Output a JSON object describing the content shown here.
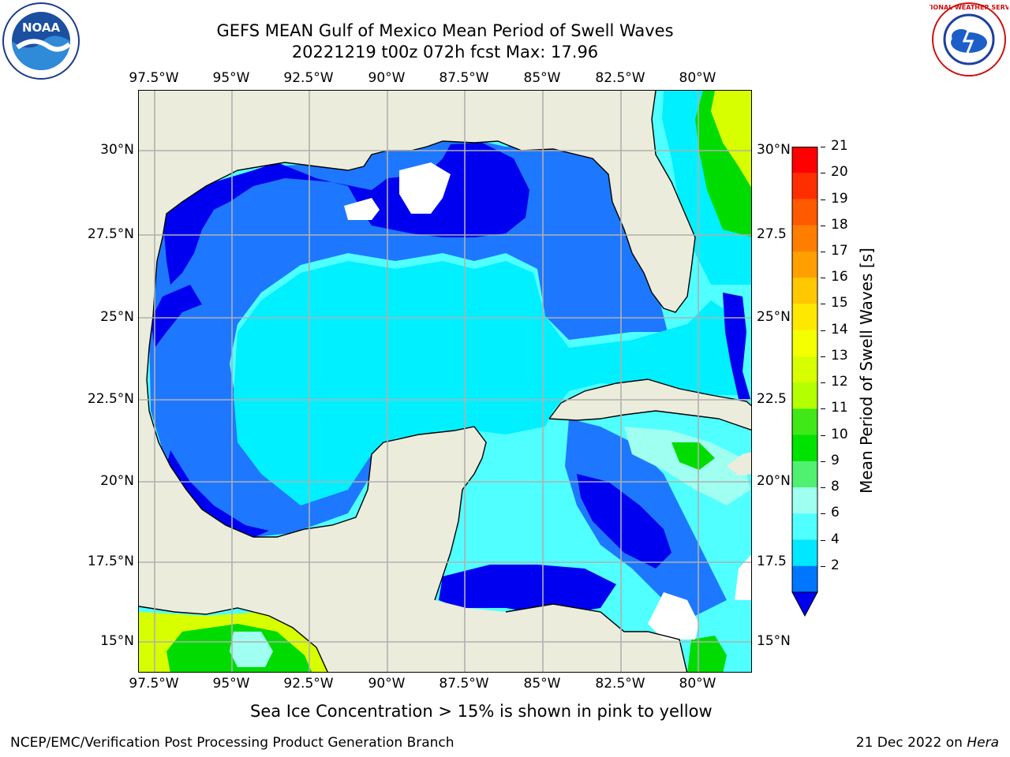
{
  "title": {
    "line1": "GEFS MEAN Gulf of Mexico Mean Period of Swell Waves",
    "line2": "20221219 t00z 072h fcst   Max: 17.96"
  },
  "logos": {
    "left": "NOAA",
    "right": "NATIONAL WEATHER SERVICE"
  },
  "axes": {
    "lon_ticks": [
      "97.5°W",
      "95°W",
      "92.5°W",
      "90°W",
      "87.5°W",
      "85°W",
      "82.5°W",
      "80°W"
    ],
    "lat_ticks_left": [
      "30°N",
      "27.5°N",
      "25°N",
      "22.5°N",
      "20°N",
      "17.5°N",
      "15°N"
    ],
    "lat_ticks_right": [
      "30°N",
      "27.5",
      "25°N",
      "22.5",
      "20°N",
      "17.5",
      "15°N"
    ]
  },
  "colorbar": {
    "label": "Mean Period of Swell Waves [s]",
    "ticks": [
      "21",
      "20",
      "19",
      "18",
      "17",
      "16",
      "15",
      "14",
      "13",
      "12",
      "11",
      "10",
      "9",
      "8",
      "6",
      "4",
      "2"
    ],
    "colors": [
      "#ff0000",
      "#ff2e00",
      "#ff5a00",
      "#ff7e00",
      "#ffa000",
      "#ffc800",
      "#ffe800",
      "#f5ff00",
      "#d8ff00",
      "#b4ff00",
      "#40e818",
      "#00e200",
      "#50f070",
      "#9ffff0",
      "#50ffff",
      "#00e8ff",
      "#0076ff"
    ],
    "under_color": "#0000f0"
  },
  "colors": {
    "land": "#ececdc",
    "deep_blue": "#0000f0",
    "blue": "#1e78ff",
    "cyan": "#00f0ff",
    "light_cyan": "#50ffff",
    "pale_cyan": "#9ffff0",
    "green": "#00dc00",
    "yellow_green": "#d8ff00"
  },
  "subtitle": "Sea Ice Concentration > 15% is shown in pink to yellow",
  "footer": {
    "left": "NCEP/EMC/Verification Post Processing Product Generation Branch",
    "right_date": "21 Dec 2022 on ",
    "right_machine": "Hera"
  }
}
